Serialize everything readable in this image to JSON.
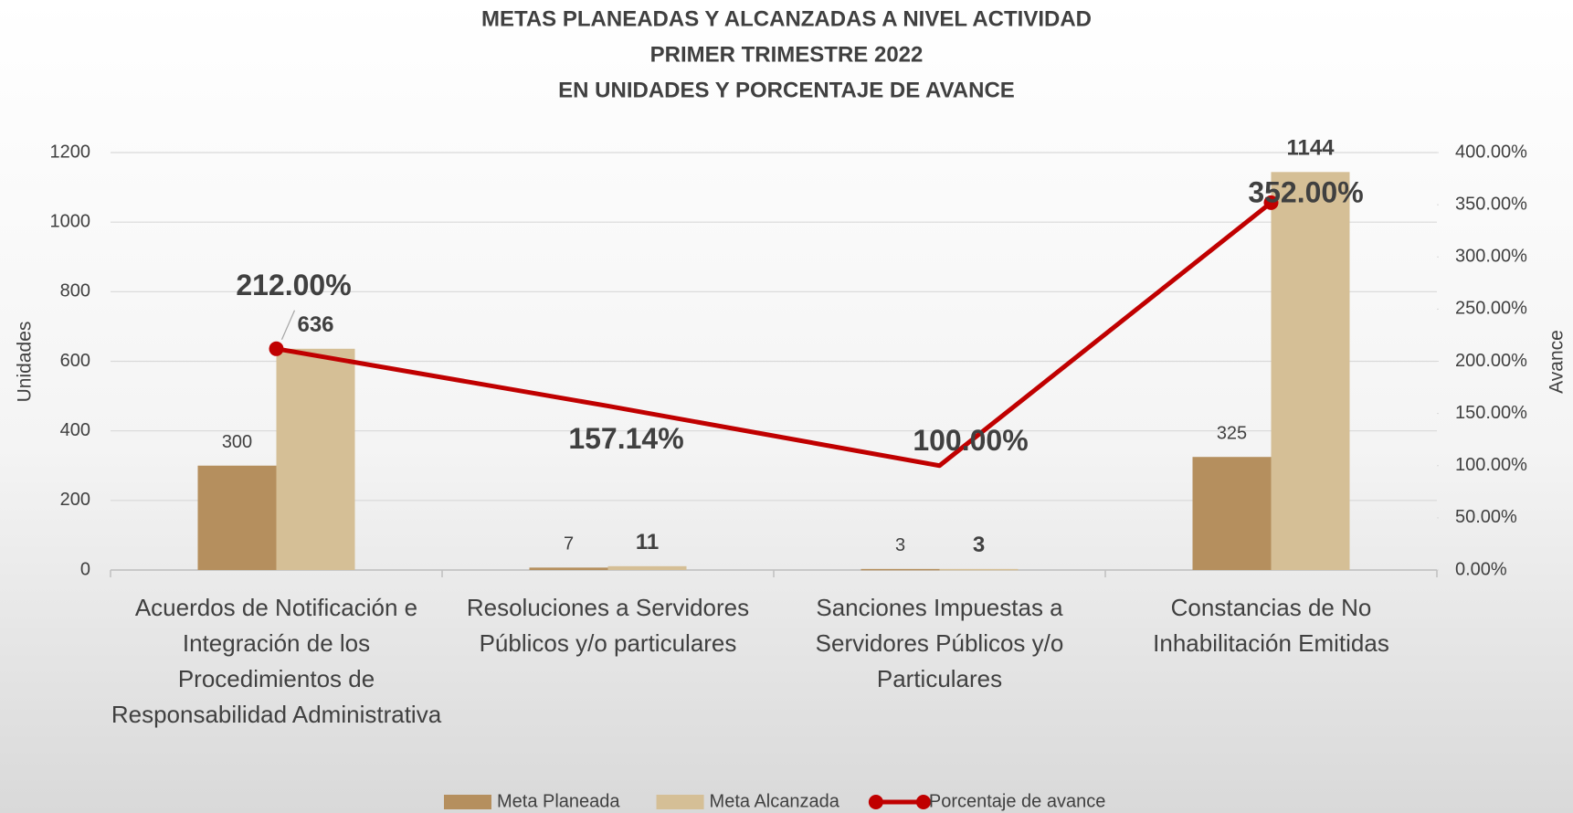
{
  "chart_data": {
    "type": "bar-line",
    "title": [
      "METAS PLANEADAS Y ALCANZADAS A NIVEL ACTIVIDAD",
      "PRIMER TRIMESTRE 2022",
      "EN UNIDADES Y PORCENTAJE DE AVANCE"
    ],
    "y_label": "Unidades",
    "y2_label": "Avance",
    "categories": [
      "Acuerdos de Notificación e Integración de los Procedimientos de Responsabilidad Administrativa",
      "Resoluciones a Servidores Públicos y/o particulares",
      "Sanciones Impuestas a Servidores Públicos y/o Particulares",
      "Constancias de No Inhabilitación Emitidas"
    ],
    "series": [
      {
        "name": "Meta Planeada",
        "type": "bar",
        "color": "#b58f5e",
        "values": [
          300,
          7,
          3,
          325
        ]
      },
      {
        "name": "Meta Alcanzada",
        "type": "bar",
        "color": "#d5bf96",
        "values": [
          636,
          11,
          3,
          1144
        ]
      },
      {
        "name": "Porcentaje de avance",
        "type": "line",
        "axis": "y2",
        "color": "#c00000",
        "values": [
          212,
          157.14,
          100,
          352
        ],
        "value_labels": [
          "212.00%",
          "157.14%",
          "100.00%",
          "352.00%"
        ]
      }
    ],
    "ylim": [
      0,
      1200
    ],
    "yticks": [
      0,
      200,
      400,
      600,
      800,
      1000,
      1200
    ],
    "y2lim": [
      0,
      400
    ],
    "y2ticks": [
      {
        "value": 0,
        "label": "0.00%"
      },
      {
        "value": 50,
        "label": "50.00%"
      },
      {
        "value": 100,
        "label": "100.00%"
      },
      {
        "value": 150,
        "label": "150.00%"
      },
      {
        "value": 200,
        "label": "200.00%"
      },
      {
        "value": 250,
        "label": "250.00%"
      },
      {
        "value": 300,
        "label": "300.00%"
      },
      {
        "value": 350,
        "label": "350.00%"
      },
      {
        "value": 400,
        "label": "400.00%"
      }
    ],
    "grid": true,
    "legend": "bottom"
  }
}
